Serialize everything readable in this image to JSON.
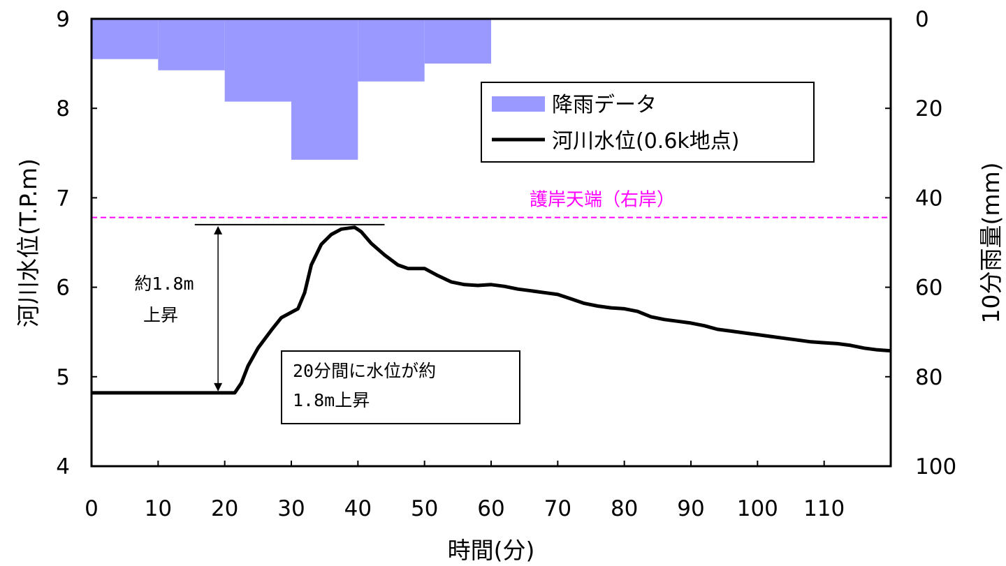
{
  "chart_data": {
    "type": "bar+line",
    "xlabel": "時間(分)",
    "ylabel_left": "河川水位(T.P.m)",
    "ylabel_right": "10分雨量(mm)",
    "x_ticks": [
      0,
      10,
      20,
      30,
      40,
      50,
      60,
      70,
      80,
      90,
      100,
      110
    ],
    "xlim": [
      0,
      120
    ],
    "ylim_left": [
      4,
      9
    ],
    "yticks_left": [
      4,
      5,
      6,
      7,
      8,
      9
    ],
    "ylim_right": [
      0,
      100
    ],
    "yticks_right": [
      0,
      20,
      40,
      60,
      80,
      100
    ],
    "right_axis_inverted": true,
    "grid": false,
    "legend_position": "top-right",
    "colors": {
      "rain": "#9999ff",
      "water_level": "#000000",
      "reference": "#ff00ff"
    },
    "series": [
      {
        "name": "降雨データ",
        "type": "bar",
        "axis": "right",
        "x_start": [
          0,
          10,
          20,
          30,
          40,
          50
        ],
        "x_end": [
          10,
          20,
          30,
          40,
          50,
          60
        ],
        "values": [
          9,
          11.5,
          18.5,
          31.5,
          14,
          10
        ]
      },
      {
        "name": "河川水位(0.6k地点)",
        "type": "line",
        "axis": "left",
        "x": [
          0,
          21.5,
          22.5,
          23.5,
          25,
          27,
          28.5,
          30,
          31,
          32,
          33,
          34.5,
          36,
          37.5,
          39.5,
          40.5,
          42,
          44,
          46,
          47.5,
          50,
          52,
          54,
          56,
          58,
          60,
          62,
          64,
          66,
          68,
          70,
          72,
          74,
          76,
          78,
          80,
          82,
          84,
          86,
          88,
          90,
          92,
          94,
          96,
          98,
          100,
          102,
          104,
          106,
          108,
          110,
          112,
          114,
          116,
          118,
          120
        ],
        "values": [
          4.82,
          4.82,
          4.93,
          5.12,
          5.32,
          5.52,
          5.66,
          5.72,
          5.76,
          5.94,
          6.25,
          6.48,
          6.59,
          6.65,
          6.67,
          6.62,
          6.49,
          6.36,
          6.25,
          6.21,
          6.21,
          6.13,
          6.06,
          6.03,
          6.02,
          6.03,
          6.01,
          5.98,
          5.96,
          5.94,
          5.92,
          5.87,
          5.82,
          5.79,
          5.77,
          5.76,
          5.73,
          5.67,
          5.64,
          5.62,
          5.6,
          5.57,
          5.53,
          5.51,
          5.49,
          5.47,
          5.45,
          5.43,
          5.41,
          5.39,
          5.38,
          5.37,
          5.35,
          5.32,
          5.3,
          5.29
        ]
      }
    ],
    "reference_line": {
      "label": "護岸天端（右岸）",
      "y": 6.78
    },
    "annotations": {
      "rise_label": [
        "約1.8m",
        "上昇"
      ],
      "rise_from": 4.82,
      "rise_to": 6.7,
      "rise_x": 19,
      "peak_line_x": [
        15.5,
        44
      ],
      "textbox": [
        "20分間に水位が約",
        "1.8m上昇"
      ]
    }
  }
}
